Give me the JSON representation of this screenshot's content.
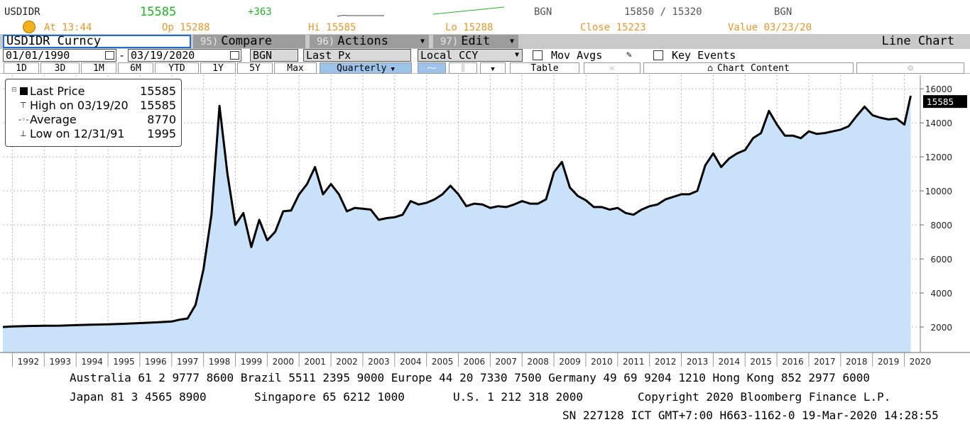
{
  "quote": {
    "ticker": "USDIDR",
    "last": "15585",
    "change": "+363",
    "source1": "BGN",
    "bid_ask": "15850 / 15320",
    "source2": "BGN",
    "at": "At 13:44",
    "open": "Op 15288",
    "high": "Hi 15585",
    "low": "Lo 15288",
    "close": "Close 15223",
    "value": "Value 03/23/20",
    "colors": {
      "up": "#25b02a",
      "label": "#e29a30"
    }
  },
  "toolbar": {
    "security": "USDIDR Curncy",
    "compare_num": "95)",
    "compare": "Compare",
    "actions_num": "96)",
    "actions": "Actions",
    "edit_num": "97)",
    "edit": "Edit",
    "chart_type": "Line Chart"
  },
  "settings": {
    "start_date": "01/01/1990",
    "end_date": "03/19/2020",
    "source": "BGN",
    "field": "Last Px",
    "currency": "Local CCY",
    "mov_avgs": "Mov Avgs",
    "key_events": "Key Events"
  },
  "ranges": {
    "buttons": [
      "1D",
      "3D",
      "1M",
      "6M",
      "YTD",
      "1Y",
      "5Y",
      "Max"
    ],
    "periodicity": "Quarterly",
    "table": "Table",
    "chart_content": "Chart Content"
  },
  "legend": {
    "last_label": "Last Price",
    "last_value": "15585",
    "high_label": "High on 03/19/20",
    "high_value": "15585",
    "avg_label": "Average",
    "avg_value": "8770",
    "low_label": "Low on 12/31/91",
    "low_value": "1995"
  },
  "chart_data": {
    "type": "area",
    "x_unit": "year",
    "xlim": [
      1991.7,
      2020.5
    ],
    "ylim": [
      500,
      16800
    ],
    "yticks": [
      2000,
      4000,
      6000,
      8000,
      10000,
      12000,
      14000,
      16000
    ],
    "xticks": [
      "1992",
      "1993",
      "1994",
      "1995",
      "1996",
      "1997",
      "1998",
      "1999",
      "2000",
      "2001",
      "2002",
      "2003",
      "2004",
      "2005",
      "2006",
      "2007",
      "2008",
      "2009",
      "2010",
      "2011",
      "2012",
      "2013",
      "2014",
      "2015",
      "2016",
      "2017",
      "2018",
      "2019",
      "2020"
    ],
    "last_label": "15585",
    "series": [
      {
        "x": [
          1991.7,
          1992.0,
          1992.5,
          1993.0,
          1993.5,
          1994.0,
          1994.5,
          1995.0,
          1995.5,
          1996.0,
          1996.5,
          1997.0,
          1997.25,
          1997.5,
          1997.75,
          1998.0,
          1998.25,
          1998.5,
          1998.75,
          1999.0,
          1999.25,
          1999.5,
          1999.75,
          2000.0,
          2000.25,
          2000.5,
          2000.75,
          2001.0,
          2001.25,
          2001.5,
          2001.75,
          2002.0,
          2002.25,
          2002.5,
          2002.75,
          2003.0,
          2003.25,
          2003.5,
          2003.75,
          2004.0,
          2004.25,
          2004.5,
          2004.75,
          2005.0,
          2005.25,
          2005.5,
          2005.75,
          2006.0,
          2006.25,
          2006.5,
          2006.75,
          2007.0,
          2007.25,
          2007.5,
          2007.75,
          2008.0,
          2008.25,
          2008.5,
          2008.75,
          2009.0,
          2009.25,
          2009.5,
          2009.75,
          2010.0,
          2010.25,
          2010.5,
          2010.75,
          2011.0,
          2011.25,
          2011.5,
          2011.75,
          2012.0,
          2012.25,
          2012.5,
          2012.75,
          2013.0,
          2013.25,
          2013.5,
          2013.75,
          2014.0,
          2014.25,
          2014.5,
          2014.75,
          2015.0,
          2015.25,
          2015.5,
          2015.75,
          2016.0,
          2016.25,
          2016.5,
          2016.75,
          2017.0,
          2017.25,
          2017.5,
          2017.75,
          2018.0,
          2018.25,
          2018.5,
          2018.75,
          2019.0,
          2019.25,
          2019.5,
          2019.75,
          2020.0,
          2020.2
        ],
        "values": [
          2000,
          2030,
          2060,
          2070,
          2080,
          2110,
          2140,
          2160,
          2190,
          2230,
          2270,
          2320,
          2430,
          2500,
          3300,
          5400,
          8600,
          15000,
          11000,
          8000,
          8700,
          6700,
          8300,
          7100,
          7600,
          8800,
          8850,
          9800,
          10400,
          11400,
          9800,
          10400,
          9800,
          8800,
          9000,
          8950,
          8900,
          8300,
          8400,
          8450,
          8600,
          9400,
          9200,
          9300,
          9500,
          9800,
          10300,
          9800,
          9100,
          9250,
          9200,
          9000,
          9100,
          9050,
          9200,
          9400,
          9250,
          9250,
          9500,
          11100,
          11700,
          10200,
          9700,
          9450,
          9050,
          9050,
          8900,
          9000,
          8700,
          8600,
          8900,
          9100,
          9200,
          9500,
          9650,
          9800,
          9800,
          10000,
          11500,
          12200,
          11400,
          11900,
          12200,
          12400,
          13100,
          13400,
          14700,
          13900,
          13250,
          13250,
          13100,
          13500,
          13350,
          13400,
          13500,
          13600,
          13800,
          14400,
          14950,
          14450,
          14300,
          14200,
          14250,
          13900,
          15585
        ]
      }
    ],
    "colors": {
      "line": "#000000",
      "fill": "#c9e2fa",
      "grid": "#b7b7b7"
    }
  },
  "footer": {
    "line1": "Australia 61 2 9777 8600 Brazil 5511 2395 9000 Europe 44 20 7330 7500 Germany 49 69 9204 1210 Hong Kong 852 2977 6000",
    "line2_a": "Japan 81 3 4565 8900",
    "line2_b": "Singapore 65 6212 1000",
    "line2_c": "U.S. 1 212 318 2000",
    "line2_d": "Copyright 2020 Bloomberg Finance L.P.",
    "line3": "SN 227128 ICT  GMT+7:00 H663-1162-0 19-Mar-2020 14:28:55"
  }
}
